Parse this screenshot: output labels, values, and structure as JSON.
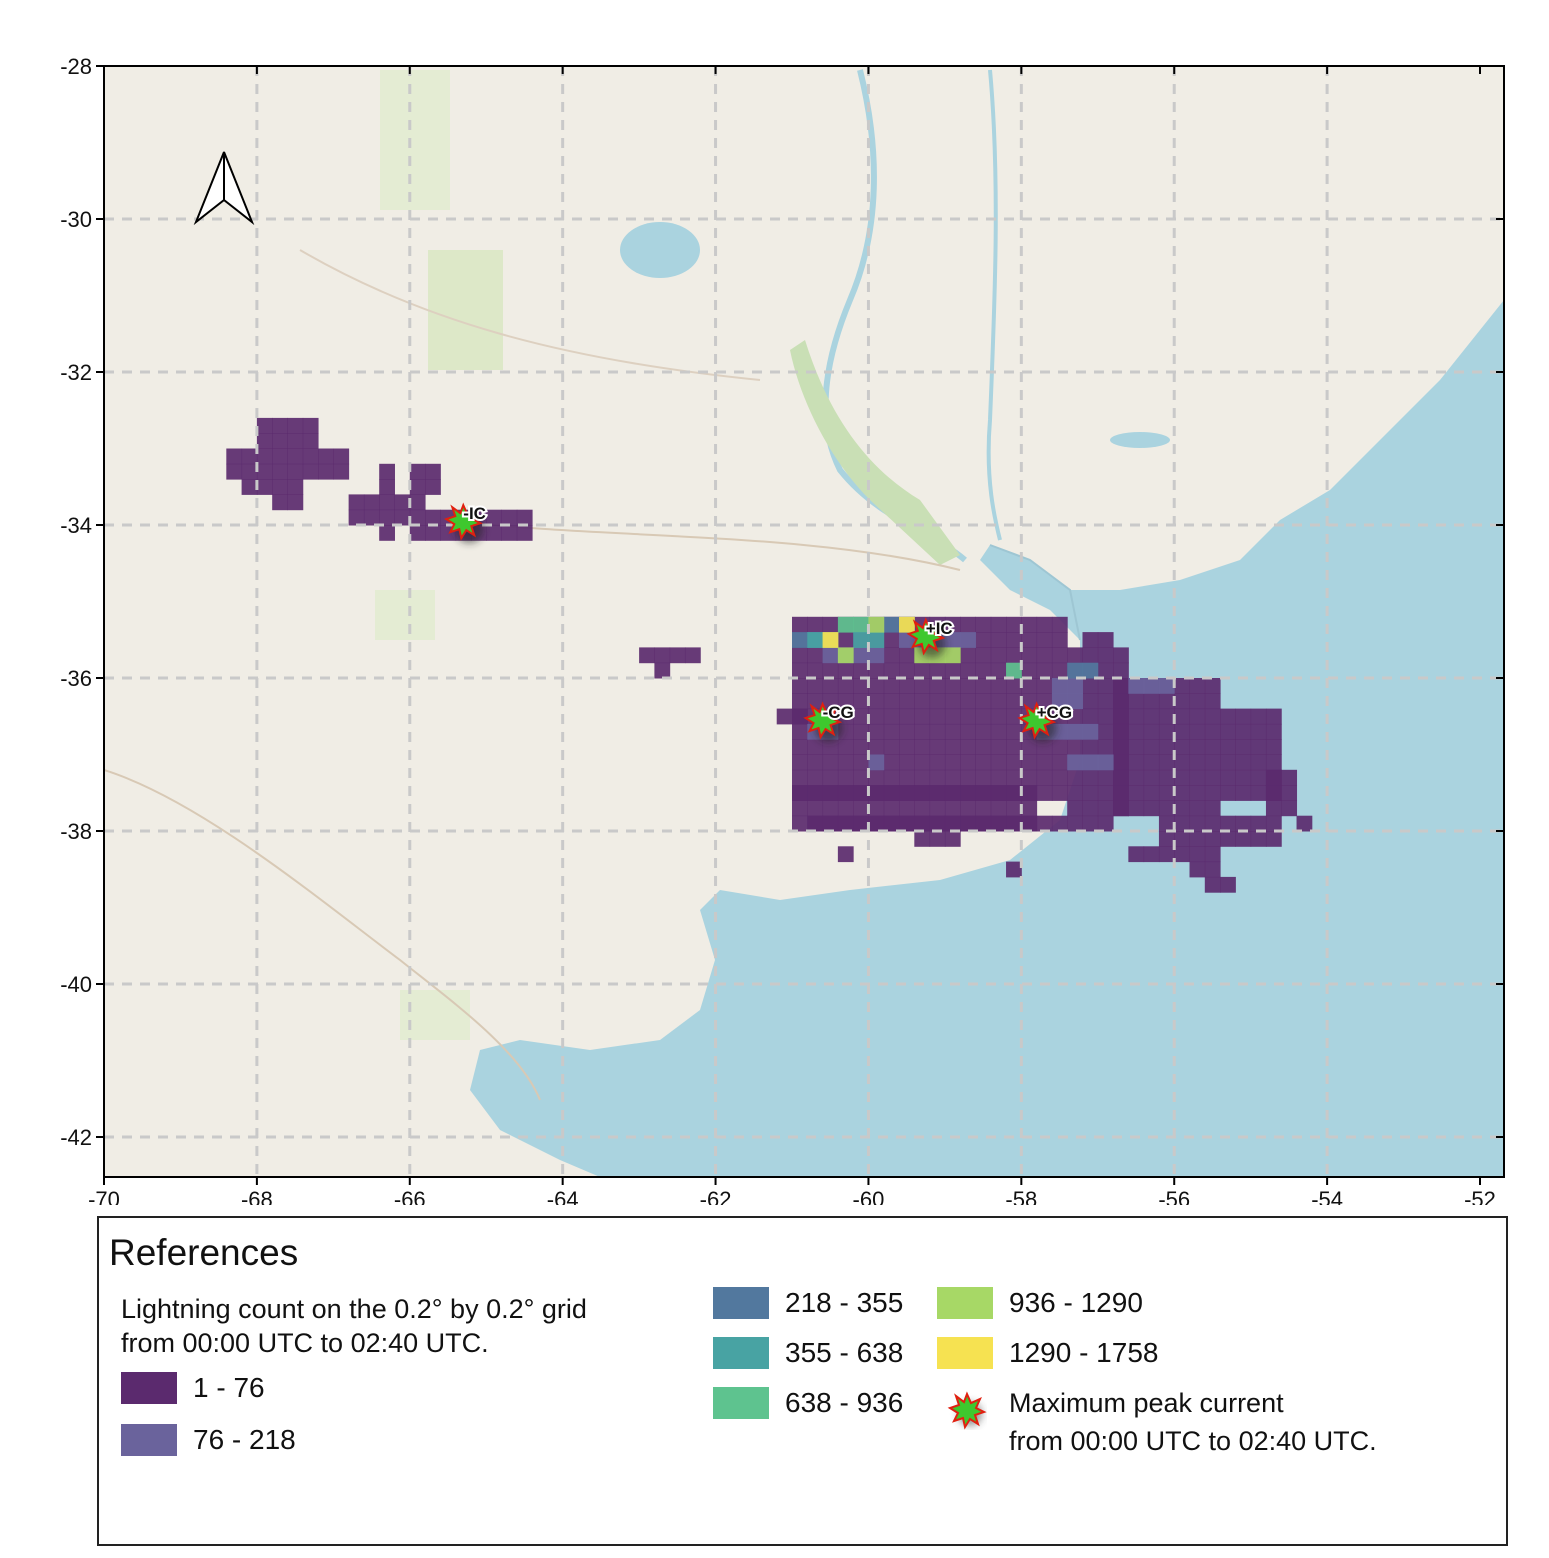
{
  "map": {
    "lon_range": [
      -70,
      -52
    ],
    "lat_range": [
      -42.5,
      -28
    ],
    "x_ticks": [
      "-70",
      "-68",
      "-66",
      "-64",
      "-62",
      "-60",
      "-58",
      "-56",
      "-54",
      "-52"
    ],
    "y_ticks": [
      "-28",
      "-30",
      "-32",
      "-34",
      "-36",
      "-38",
      "-40",
      "-42"
    ],
    "colors": {
      "land": "#f0ede5",
      "water": "#aad3df",
      "grid_line": "#c9c9c9",
      "c1": "#5b2a6e",
      "c2": "#6a639c",
      "c3": "#52789e",
      "c4": "#48a3a3",
      "c5": "#5ec38f",
      "c6": "#a7d866",
      "c7": "#f6e251"
    },
    "peak_markers": [
      {
        "label": "-IC",
        "lon": -65.3,
        "lat": -33.95
      },
      {
        "label": "+IC",
        "lon": -59.25,
        "lat": -35.45
      },
      {
        "label": "-CG",
        "lon": -60.6,
        "lat": -36.55
      },
      {
        "label": "+CG",
        "lon": -57.8,
        "lat": -36.55
      }
    ],
    "north_arrow": "north-arrow-icon"
  },
  "legend": {
    "title": "References",
    "desc_line1": "Lightning count on the 0.2° by  0.2° grid",
    "desc_line2": "from 00:00 UTC to  02:40 UTC.",
    "classes": [
      {
        "label": "1 - 76",
        "color": "#5b2a6e"
      },
      {
        "label": "76 - 218",
        "color": "#6a639c"
      },
      {
        "label": "218 - 355",
        "color": "#52789e"
      },
      {
        "label": "355 - 638",
        "color": "#48a3a3"
      },
      {
        "label": "638 - 936",
        "color": "#5ec38f"
      },
      {
        "label": "936 - 1290",
        "color": "#a7d866"
      },
      {
        "label": "1290 - 1758",
        "color": "#f6e251"
      }
    ],
    "star_line1": "Maximum peak current",
    "star_line2": "from 00:00 UTC to  02:40 UTC."
  }
}
